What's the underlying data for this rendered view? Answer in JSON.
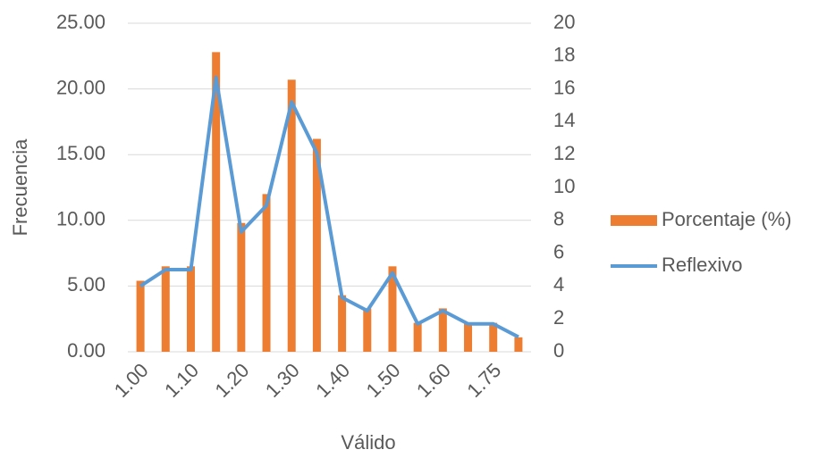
{
  "chart_data": {
    "type": "bar",
    "categories": [
      "1.00",
      null,
      "1.10",
      null,
      "1.20",
      null,
      "1.30",
      null,
      "1.40",
      null,
      "1.50",
      null,
      "1.60",
      null,
      "1.75",
      null
    ],
    "series": [
      {
        "name": "Porcentaje (%)",
        "type": "bar",
        "color": "#ed7d31",
        "values": [
          5.4,
          6.5,
          6.5,
          22.8,
          9.8,
          12.0,
          20.7,
          16.2,
          4.3,
          3.3,
          6.5,
          2.2,
          3.3,
          2.2,
          2.2,
          1.1
        ]
      },
      {
        "name": "Reflexivo",
        "type": "line",
        "axis": "y2",
        "color": "#5b9bd5",
        "values": [
          4,
          5,
          5,
          16.7,
          7.3,
          8.9,
          15.2,
          12.1,
          3.3,
          2.5,
          4.8,
          1.7,
          2.5,
          1.7,
          1.7,
          0.9
        ]
      }
    ],
    "x_label": "Válido",
    "y_label": "Frecuencia",
    "ylim": [
      0,
      25
    ],
    "yticks": [
      {
        "value": 0,
        "label": "0.00"
      },
      {
        "value": 5,
        "label": "5.00"
      },
      {
        "value": 10,
        "label": "10.00"
      },
      {
        "value": 15,
        "label": "15.00"
      },
      {
        "value": 20,
        "label": "20.00"
      },
      {
        "value": 25,
        "label": "25.00"
      }
    ],
    "y2lim": [
      0,
      20
    ],
    "y2ticks": [
      0,
      2,
      4,
      6,
      8,
      10,
      12,
      14,
      16,
      18,
      20
    ],
    "grid": true,
    "legend": "right"
  }
}
